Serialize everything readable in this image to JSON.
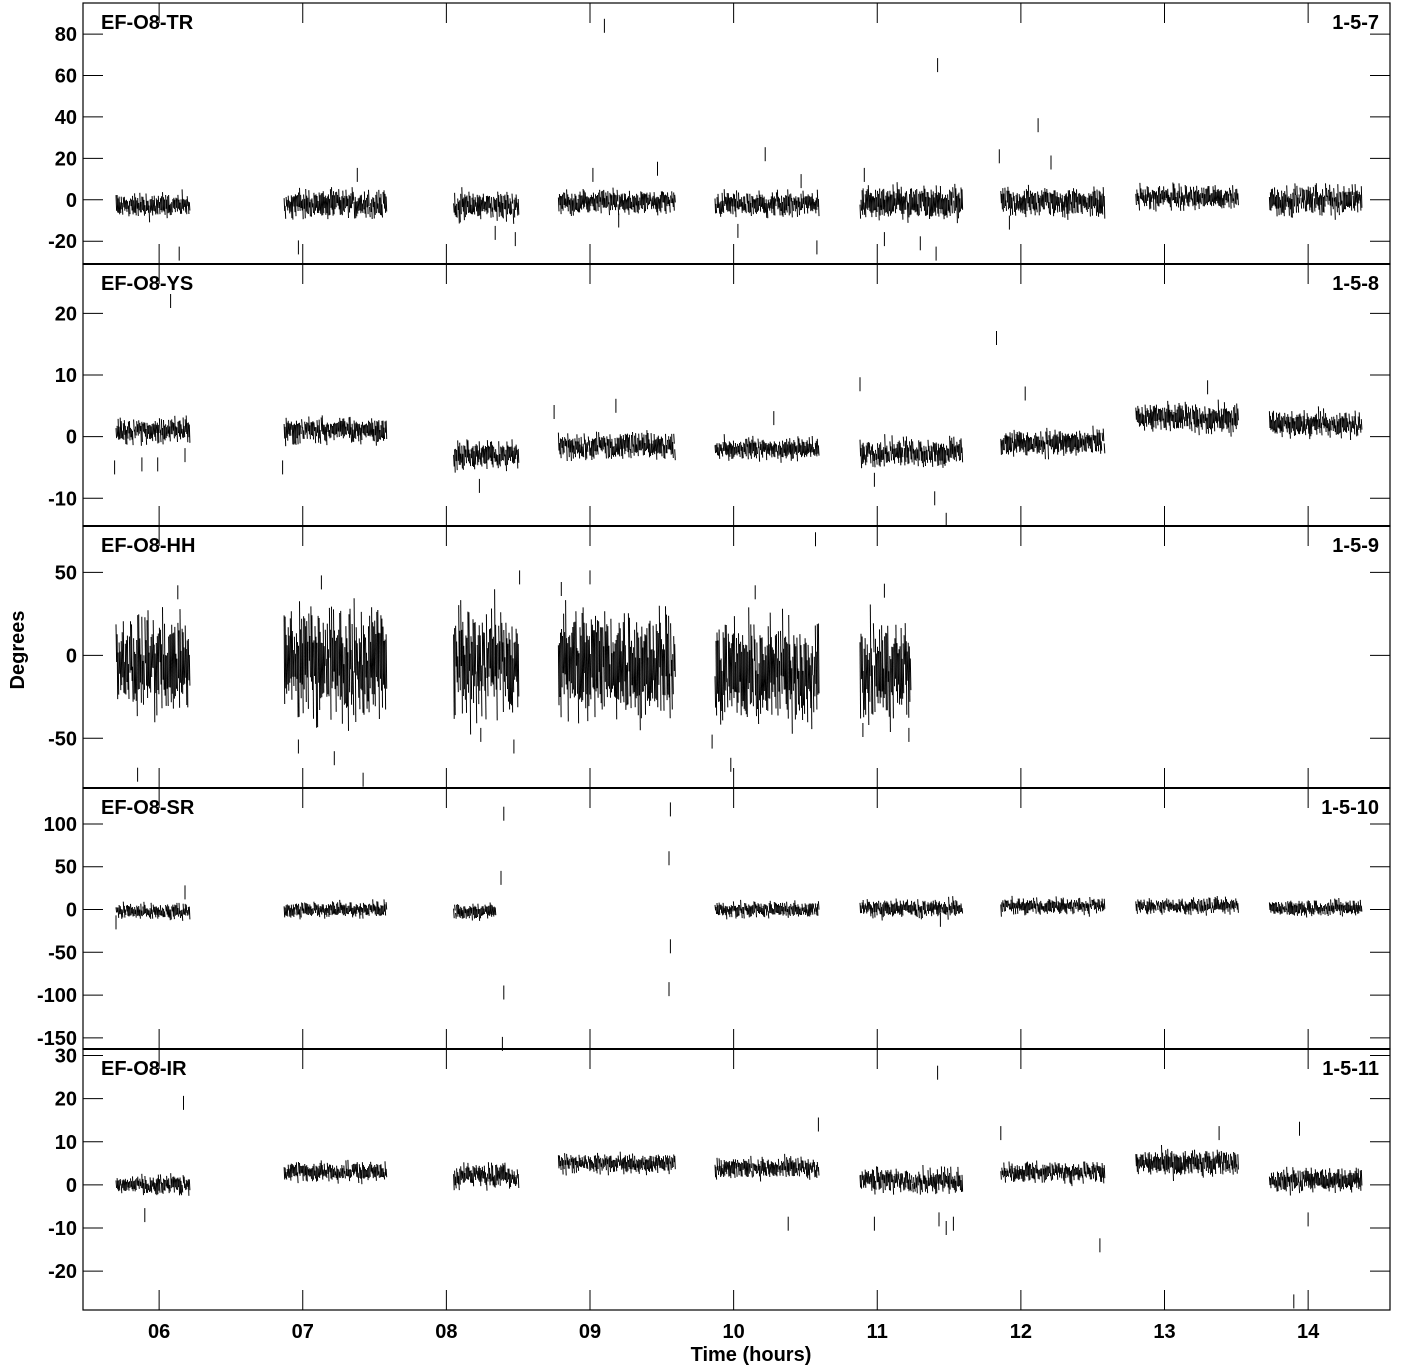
{
  "chart_data": {
    "type": "scatter",
    "xlabel": "Time (hours)",
    "ylabel": "Degrees",
    "xlim": [
      5.47,
      14.57
    ],
    "x_ticks": [
      6,
      7,
      8,
      9,
      10,
      11,
      12,
      13,
      14
    ],
    "x_tick_labels": [
      "06",
      "07",
      "08",
      "09",
      "10",
      "11",
      "12",
      "13",
      "14"
    ],
    "panels": [
      {
        "label": "EF-O8-TR",
        "code": "1-5-7",
        "ylim": [
          -31,
          95
        ],
        "yticks": [
          -20,
          0,
          20,
          40,
          60,
          80
        ],
        "scans": [
          {
            "start": 5.7,
            "end": 6.21,
            "center": -3,
            "spread": 5
          },
          {
            "start": 6.87,
            "end": 7.58,
            "center": -2,
            "spread": 6
          },
          {
            "start": 8.05,
            "end": 8.5,
            "center": -3,
            "spread": 6
          },
          {
            "start": 8.78,
            "end": 9.59,
            "center": -1,
            "spread": 5
          },
          {
            "start": 9.87,
            "end": 10.59,
            "center": -2,
            "spread": 5
          },
          {
            "start": 10.88,
            "end": 11.59,
            "center": -2,
            "spread": 7
          },
          {
            "start": 11.86,
            "end": 12.58,
            "center": -1,
            "spread": 6
          },
          {
            "start": 12.8,
            "end": 13.51,
            "center": 1,
            "spread": 5
          },
          {
            "start": 13.73,
            "end": 14.37,
            "center": 0,
            "spread": 6
          }
        ],
        "outliers": [
          [
            9.1,
            84
          ],
          [
            11.42,
            65
          ],
          [
            12.12,
            36
          ],
          [
            10.22,
            22
          ],
          [
            11.85,
            21
          ],
          [
            12.21,
            18
          ],
          [
            7.38,
            12
          ],
          [
            9.02,
            12
          ],
          [
            9.47,
            15
          ],
          [
            10.47,
            9
          ],
          [
            10.91,
            12
          ],
          [
            6.14,
            -26
          ],
          [
            6.97,
            -23
          ],
          [
            8.34,
            -16
          ],
          [
            8.48,
            -19
          ],
          [
            10.03,
            -15
          ],
          [
            10.58,
            -23
          ],
          [
            11.05,
            -19
          ],
          [
            11.3,
            -21
          ],
          [
            11.41,
            -26
          ],
          [
            11.92,
            -11
          ],
          [
            9.2,
            -10
          ]
        ]
      },
      {
        "label": "EF-O8-YS",
        "code": "1-5-8",
        "ylim": [
          -14.5,
          28
        ],
        "yticks": [
          -10,
          0,
          10,
          20
        ],
        "scans": [
          {
            "start": 5.7,
            "end": 6.21,
            "center": 1,
            "spread": 1.8
          },
          {
            "start": 6.87,
            "end": 7.58,
            "center": 1,
            "spread": 1.8
          },
          {
            "start": 8.05,
            "end": 8.5,
            "center": -3,
            "spread": 2.0
          },
          {
            "start": 8.78,
            "end": 9.59,
            "center": -1.5,
            "spread": 1.8
          },
          {
            "start": 9.87,
            "end": 10.59,
            "center": -2,
            "spread": 1.5
          },
          {
            "start": 10.88,
            "end": 11.59,
            "center": -2.5,
            "spread": 2.0
          },
          {
            "start": 11.86,
            "end": 12.58,
            "center": -1,
            "spread": 1.8
          },
          {
            "start": 12.8,
            "end": 13.51,
            "center": 3,
            "spread": 2.0
          },
          {
            "start": 13.73,
            "end": 14.37,
            "center": 2,
            "spread": 1.8
          }
        ],
        "outliers": [
          [
            6.08,
            22
          ],
          [
            11.83,
            16
          ],
          [
            10.88,
            8.5
          ],
          [
            12.03,
            7
          ],
          [
            13.3,
            8
          ],
          [
            8.75,
            4
          ],
          [
            9.18,
            5
          ],
          [
            5.69,
            -5
          ],
          [
            5.88,
            -4.5
          ],
          [
            5.99,
            -4.5
          ],
          [
            6.18,
            -3
          ],
          [
            6.86,
            -5
          ],
          [
            8.23,
            -8
          ],
          [
            10.98,
            -7
          ],
          [
            11.4,
            -10
          ],
          [
            11.48,
            -13.5
          ],
          [
            10.28,
            3
          ]
        ]
      },
      {
        "label": "EF-O8-HH",
        "code": "1-5-9",
        "ylim": [
          -80,
          78
        ],
        "yticks": [
          -50,
          0,
          50
        ],
        "scans": [
          {
            "start": 5.7,
            "end": 6.21,
            "center": -5,
            "spread": 25
          },
          {
            "start": 6.87,
            "end": 7.58,
            "center": -5,
            "spread": 30
          },
          {
            "start": 8.05,
            "end": 8.5,
            "center": -5,
            "spread": 28
          },
          {
            "start": 8.78,
            "end": 9.59,
            "center": -5,
            "spread": 28
          },
          {
            "start": 9.87,
            "end": 10.59,
            "center": -10,
            "spread": 25
          },
          {
            "start": 10.88,
            "end": 11.23,
            "center": -10,
            "spread": 25
          }
        ],
        "outliers": [
          [
            10.57,
            70
          ],
          [
            8.51,
            47
          ],
          [
            9.0,
            47
          ],
          [
            7.13,
            44
          ],
          [
            10.15,
            38
          ],
          [
            6.13,
            38
          ],
          [
            8.8,
            40
          ],
          [
            11.05,
            39
          ],
          [
            5.85,
            -72
          ],
          [
            6.97,
            -55
          ],
          [
            7.22,
            -62
          ],
          [
            7.42,
            -75
          ],
          [
            9.85,
            -52
          ],
          [
            9.98,
            -66
          ],
          [
            8.24,
            -48
          ],
          [
            8.47,
            -55
          ],
          [
            11.22,
            -48
          ],
          [
            10.9,
            -45
          ]
        ]
      },
      {
        "label": "EF-O8-SR",
        "code": "1-5-10",
        "ylim": [
          -163,
          142
        ],
        "yticks": [
          -150,
          -100,
          -50,
          0,
          50,
          100
        ],
        "scans": [
          {
            "start": 5.7,
            "end": 6.21,
            "center": -2,
            "spread": 8
          },
          {
            "start": 6.87,
            "end": 7.58,
            "center": 0,
            "spread": 8
          },
          {
            "start": 8.05,
            "end": 8.34,
            "center": -2,
            "spread": 8
          },
          {
            "start": 9.87,
            "end": 10.59,
            "center": 0,
            "spread": 8
          },
          {
            "start": 10.88,
            "end": 11.59,
            "center": 1,
            "spread": 9
          },
          {
            "start": 11.86,
            "end": 12.58,
            "center": 4,
            "spread": 8
          },
          {
            "start": 12.8,
            "end": 13.51,
            "center": 4,
            "spread": 8
          },
          {
            "start": 13.73,
            "end": 14.37,
            "center": 2,
            "spread": 8
          }
        ],
        "outliers": [
          [
            8.4,
            112
          ],
          [
            9.56,
            117
          ],
          [
            9.55,
            60
          ],
          [
            8.38,
            37
          ],
          [
            9.56,
            -43
          ],
          [
            8.4,
            -97
          ],
          [
            9.55,
            -93
          ],
          [
            8.39,
            -157
          ],
          [
            6.18,
            20
          ],
          [
            5.7,
            -15
          ],
          [
            11.44,
            -12
          ]
        ]
      },
      {
        "label": "EF-O8-IR",
        "code": "1-5-11",
        "ylim": [
          -29,
          31.5
        ],
        "yticks": [
          -20,
          -10,
          0,
          10,
          20,
          30
        ],
        "scans": [
          {
            "start": 5.7,
            "end": 6.21,
            "center": 0,
            "spread": 2.0
          },
          {
            "start": 6.87,
            "end": 7.58,
            "center": 3,
            "spread": 2.0
          },
          {
            "start": 8.05,
            "end": 8.5,
            "center": 2,
            "spread": 2.5
          },
          {
            "start": 8.78,
            "end": 9.59,
            "center": 5,
            "spread": 2.0
          },
          {
            "start": 9.87,
            "end": 10.59,
            "center": 4,
            "spread": 2.0
          },
          {
            "start": 10.88,
            "end": 11.59,
            "center": 1,
            "spread": 2.5
          },
          {
            "start": 11.86,
            "end": 12.58,
            "center": 3,
            "spread": 2.0
          },
          {
            "start": 12.8,
            "end": 13.51,
            "center": 5,
            "spread": 2.5
          },
          {
            "start": 13.73,
            "end": 14.37,
            "center": 1,
            "spread": 2.5
          }
        ],
        "outliers": [
          [
            6.17,
            19
          ],
          [
            11.42,
            26
          ],
          [
            10.59,
            14
          ],
          [
            13.94,
            13
          ],
          [
            11.86,
            12
          ],
          [
            13.38,
            12
          ],
          [
            5.9,
            -7
          ],
          [
            10.38,
            -9
          ],
          [
            10.98,
            -9
          ],
          [
            11.43,
            -8
          ],
          [
            11.48,
            -10
          ],
          [
            11.53,
            -9
          ],
          [
            12.55,
            -14
          ],
          [
            14.0,
            -8
          ],
          [
            13.9,
            -27
          ]
        ]
      }
    ]
  }
}
